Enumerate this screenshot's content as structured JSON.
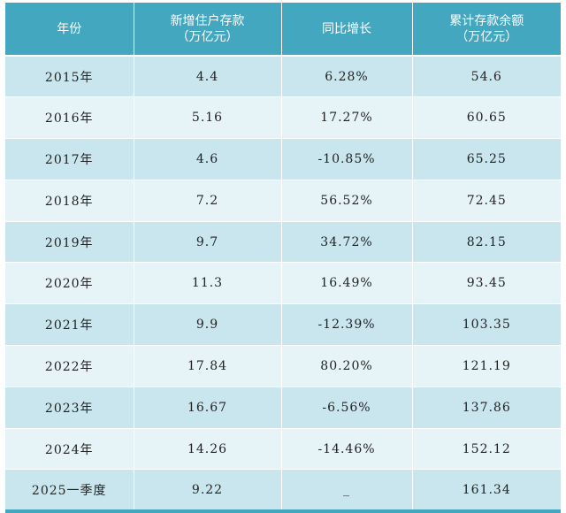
{
  "table": {
    "headers": [
      {
        "lines": [
          "年份"
        ]
      },
      {
        "lines": [
          "新增住户存款",
          "（万亿元）"
        ]
      },
      {
        "lines": [
          "同比增长"
        ]
      },
      {
        "lines": [
          "累计存款余额",
          "（万亿元）"
        ]
      }
    ],
    "rows": [
      [
        "2015年",
        "4.4",
        "6.28%",
        "54.6"
      ],
      [
        "2016年",
        "5.16",
        "17.27%",
        "60.65"
      ],
      [
        "2017年",
        "4.6",
        "-10.85%",
        "65.25"
      ],
      [
        "2018年",
        "7.2",
        "56.52%",
        "72.45"
      ],
      [
        "2019年",
        "9.7",
        "34.72%",
        "82.15"
      ],
      [
        "2020年",
        "11.3",
        "16.49%",
        "93.45"
      ],
      [
        "2021年",
        "9.9",
        "-12.39%",
        "103.35"
      ],
      [
        "2022年",
        "17.84",
        "80.20%",
        "121.19"
      ],
      [
        "2023年",
        "16.67",
        "-6.56%",
        "137.86"
      ],
      [
        "2024年",
        "14.26",
        "-14.46%",
        "152.12"
      ],
      [
        "2025一季度",
        "9.22",
        "_",
        "161.34"
      ]
    ]
  },
  "colors": {
    "header_bg": "#43a7c0",
    "row_odd": "#c9e6ee",
    "row_even": "#e6f3f7"
  }
}
